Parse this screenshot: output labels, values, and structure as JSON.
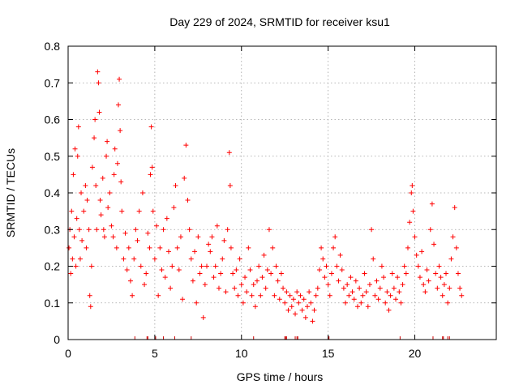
{
  "chart_data": {
    "type": "scatter",
    "title": "Day 229 of 2024, SRMTID for receiver ksu1",
    "xlabel": "GPS time / hours",
    "ylabel": "SRMTID / TECUs",
    "xlim": [
      0,
      24.7
    ],
    "ylim": [
      0,
      0.8
    ],
    "grid": true,
    "marker": "plus",
    "color": "#ff0000",
    "x_ticks": [
      0,
      5,
      10,
      15,
      20
    ],
    "x_tick_labels": [
      "0",
      "5",
      "10",
      "15",
      "20"
    ],
    "y_ticks": [
      0,
      0.1,
      0.2,
      0.3,
      0.4,
      0.5,
      0.6,
      0.7,
      0.8
    ],
    "y_tick_labels": [
      "0",
      "0.1",
      "0.2",
      "0.3",
      "0.4",
      "0.5",
      "0.6",
      "0.7",
      "0.8"
    ],
    "series": [
      {
        "name": "SRMTID",
        "points": [
          [
            0.05,
            0.25
          ],
          [
            0.1,
            0.3
          ],
          [
            0.15,
            0.18
          ],
          [
            0.2,
            0.35
          ],
          [
            0.25,
            0.22
          ],
          [
            0.3,
            0.45
          ],
          [
            0.35,
            0.28
          ],
          [
            0.4,
            0.52
          ],
          [
            0.45,
            0.2
          ],
          [
            0.5,
            0.33
          ],
          [
            0.55,
            0.5
          ],
          [
            0.6,
            0.58
          ],
          [
            0.65,
            0.3
          ],
          [
            0.7,
            0.22
          ],
          [
            0.75,
            0.4
          ],
          [
            0.8,
            0.27
          ],
          [
            0.9,
            0.35
          ],
          [
            1.0,
            0.42
          ],
          [
            1.05,
            0.25
          ],
          [
            1.1,
            0.38
          ],
          [
            1.2,
            0.3
          ],
          [
            1.25,
            0.12
          ],
          [
            1.3,
            0.09
          ],
          [
            1.35,
            0.2
          ],
          [
            1.4,
            0.47
          ],
          [
            1.5,
            0.55
          ],
          [
            1.55,
            0.6
          ],
          [
            1.6,
            0.42
          ],
          [
            1.65,
            0.3
          ],
          [
            1.7,
            0.73
          ],
          [
            1.75,
            0.7
          ],
          [
            1.8,
            0.62
          ],
          [
            1.85,
            0.38
          ],
          [
            1.9,
            0.34
          ],
          [
            2.0,
            0.44
          ],
          [
            2.05,
            0.3
          ],
          [
            2.1,
            0.28
          ],
          [
            2.2,
            0.5
          ],
          [
            2.25,
            0.54
          ],
          [
            2.3,
            0.36
          ],
          [
            2.4,
            0.4
          ],
          [
            2.5,
            0.31
          ],
          [
            2.6,
            0.28
          ],
          [
            2.65,
            0.45
          ],
          [
            2.7,
            0.52
          ],
          [
            2.8,
            0.25
          ],
          [
            2.85,
            0.48
          ],
          [
            2.9,
            0.64
          ],
          [
            2.95,
            0.71
          ],
          [
            3.0,
            0.57
          ],
          [
            3.05,
            0.43
          ],
          [
            3.1,
            0.35
          ],
          [
            3.2,
            0.22
          ],
          [
            3.3,
            0.29
          ],
          [
            3.4,
            0.19
          ],
          [
            3.5,
            0.25
          ],
          [
            3.6,
            0.16
          ],
          [
            3.7,
            0.12
          ],
          [
            3.8,
            0.22
          ],
          [
            3.9,
            0.3
          ],
          [
            4.0,
            0.27
          ],
          [
            4.1,
            0.35
          ],
          [
            4.2,
            0.2
          ],
          [
            4.3,
            0.4
          ],
          [
            4.4,
            0.15
          ],
          [
            4.5,
            0.18
          ],
          [
            4.6,
            0.29
          ],
          [
            4.7,
            0.25
          ],
          [
            4.75,
            0.45
          ],
          [
            4.8,
            0.58
          ],
          [
            4.85,
            0.47
          ],
          [
            4.9,
            0.35
          ],
          [
            5.0,
            0.22
          ],
          [
            5.1,
            0.31
          ],
          [
            5.2,
            0.12
          ],
          [
            5.3,
            0.25
          ],
          [
            5.4,
            0.19
          ],
          [
            5.5,
            0.3
          ],
          [
            5.6,
            0.17
          ],
          [
            5.7,
            0.33
          ],
          [
            5.8,
            0.24
          ],
          [
            5.9,
            0.14
          ],
          [
            6.0,
            0.2
          ],
          [
            6.1,
            0.36
          ],
          [
            6.2,
            0.42
          ],
          [
            6.3,
            0.25
          ],
          [
            6.4,
            0.19
          ],
          [
            6.5,
            0.28
          ],
          [
            6.6,
            0.11
          ],
          [
            6.7,
            0.44
          ],
          [
            6.8,
            0.53
          ],
          [
            6.9,
            0.38
          ],
          [
            7.0,
            0.3
          ],
          [
            7.1,
            0.22
          ],
          [
            7.2,
            0.16
          ],
          [
            7.3,
            0.24
          ],
          [
            7.4,
            0.1
          ],
          [
            7.5,
            0.28
          ],
          [
            7.6,
            0.18
          ],
          [
            7.7,
            0.2
          ],
          [
            7.8,
            0.06
          ],
          [
            7.9,
            0.15
          ],
          [
            8.0,
            0.2
          ],
          [
            8.1,
            0.26
          ],
          [
            8.2,
            0.24
          ],
          [
            8.3,
            0.28
          ],
          [
            8.4,
            0.17
          ],
          [
            8.5,
            0.2
          ],
          [
            8.6,
            0.31
          ],
          [
            8.7,
            0.14
          ],
          [
            8.8,
            0.18
          ],
          [
            8.9,
            0.22
          ],
          [
            9.0,
            0.27
          ],
          [
            9.1,
            0.13
          ],
          [
            9.2,
            0.3
          ],
          [
            9.3,
            0.51
          ],
          [
            9.35,
            0.42
          ],
          [
            9.4,
            0.25
          ],
          [
            9.5,
            0.18
          ],
          [
            9.6,
            0.14
          ],
          [
            9.7,
            0.19
          ],
          [
            9.8,
            0.12
          ],
          [
            9.9,
            0.22
          ],
          [
            10.0,
            0.15
          ],
          [
            10.1,
            0.1
          ],
          [
            10.2,
            0.17
          ],
          [
            10.3,
            0.13
          ],
          [
            10.4,
            0.25
          ],
          [
            10.5,
            0.19
          ],
          [
            10.6,
            0.12
          ],
          [
            10.7,
            0.15
          ],
          [
            10.8,
            0.09
          ],
          [
            10.9,
            0.16
          ],
          [
            11.0,
            0.2
          ],
          [
            11.1,
            0.12
          ],
          [
            11.2,
            0.17
          ],
          [
            11.3,
            0.23
          ],
          [
            11.4,
            0.14
          ],
          [
            11.5,
            0.19
          ],
          [
            11.6,
            0.3
          ],
          [
            11.7,
            0.18
          ],
          [
            11.8,
            0.25
          ],
          [
            11.9,
            0.12
          ],
          [
            12.0,
            0.2
          ],
          [
            12.1,
            0.16
          ],
          [
            12.2,
            0.11
          ],
          [
            12.3,
            0.18
          ],
          [
            12.4,
            0.14
          ],
          [
            12.5,
            0.1
          ],
          [
            12.6,
            0.13
          ],
          [
            12.7,
            0.08
          ],
          [
            12.8,
            0.12
          ],
          [
            12.9,
            0.09
          ],
          [
            13.0,
            0.11
          ],
          [
            13.1,
            0.07
          ],
          [
            13.2,
            0.13
          ],
          [
            13.3,
            0.1
          ],
          [
            13.4,
            0.12
          ],
          [
            13.5,
            0.08
          ],
          [
            13.6,
            0.11
          ],
          [
            13.7,
            0.06
          ],
          [
            13.8,
            0.09
          ],
          [
            13.9,
            0.13
          ],
          [
            14.0,
            0.1
          ],
          [
            14.1,
            0.05
          ],
          [
            14.2,
            0.08
          ],
          [
            14.3,
            0.12
          ],
          [
            14.4,
            0.14
          ],
          [
            14.5,
            0.19
          ],
          [
            14.6,
            0.25
          ],
          [
            14.7,
            0.22
          ],
          [
            14.8,
            0.17
          ],
          [
            14.9,
            0.2
          ],
          [
            15.0,
            0.15
          ],
          [
            15.1,
            0.12
          ],
          [
            15.2,
            0.18
          ],
          [
            15.3,
            0.25
          ],
          [
            15.4,
            0.28
          ],
          [
            15.5,
            0.2
          ],
          [
            15.6,
            0.16
          ],
          [
            15.7,
            0.23
          ],
          [
            15.8,
            0.19
          ],
          [
            15.9,
            0.14
          ],
          [
            16.0,
            0.1
          ],
          [
            16.1,
            0.15
          ],
          [
            16.2,
            0.12
          ],
          [
            16.3,
            0.17
          ],
          [
            16.4,
            0.13
          ],
          [
            16.5,
            0.11
          ],
          [
            16.6,
            0.16
          ],
          [
            16.7,
            0.09
          ],
          [
            16.8,
            0.14
          ],
          [
            16.9,
            0.1
          ],
          [
            17.0,
            0.12
          ],
          [
            17.1,
            0.18
          ],
          [
            17.2,
            0.13
          ],
          [
            17.3,
            0.09
          ],
          [
            17.4,
            0.15
          ],
          [
            17.5,
            0.3
          ],
          [
            17.6,
            0.22
          ],
          [
            17.7,
            0.12
          ],
          [
            17.8,
            0.16
          ],
          [
            17.9,
            0.11
          ],
          [
            18.0,
            0.14
          ],
          [
            18.1,
            0.2
          ],
          [
            18.2,
            0.17
          ],
          [
            18.3,
            0.1
          ],
          [
            18.4,
            0.13
          ],
          [
            18.5,
            0.08
          ],
          [
            18.6,
            0.12
          ],
          [
            18.7,
            0.18
          ],
          [
            18.8,
            0.14
          ],
          [
            18.9,
            0.11
          ],
          [
            19.0,
            0.17
          ],
          [
            19.1,
            0.13
          ],
          [
            19.2,
            0.1
          ],
          [
            19.3,
            0.15
          ],
          [
            19.4,
            0.2
          ],
          [
            19.5,
            0.18
          ],
          [
            19.6,
            0.25
          ],
          [
            19.7,
            0.32
          ],
          [
            19.8,
            0.4
          ],
          [
            19.85,
            0.42
          ],
          [
            19.9,
            0.35
          ],
          [
            20.0,
            0.28
          ],
          [
            20.1,
            0.23
          ],
          [
            20.2,
            0.2
          ],
          [
            20.3,
            0.17
          ],
          [
            20.4,
            0.24
          ],
          [
            20.5,
            0.15
          ],
          [
            20.6,
            0.13
          ],
          [
            20.7,
            0.19
          ],
          [
            20.8,
            0.16
          ],
          [
            20.9,
            0.3
          ],
          [
            21.0,
            0.37
          ],
          [
            21.1,
            0.26
          ],
          [
            21.2,
            0.18
          ],
          [
            21.3,
            0.14
          ],
          [
            21.4,
            0.2
          ],
          [
            21.5,
            0.17
          ],
          [
            21.6,
            0.12
          ],
          [
            21.7,
            0.15
          ],
          [
            21.8,
            0.18
          ],
          [
            21.9,
            0.1
          ],
          [
            22.0,
            0.14
          ],
          [
            22.1,
            0.22
          ],
          [
            22.2,
            0.28
          ],
          [
            22.3,
            0.36
          ],
          [
            22.4,
            0.25
          ],
          [
            22.5,
            0.18
          ],
          [
            22.6,
            0.14
          ],
          [
            22.7,
            0.12
          ]
        ]
      }
    ],
    "rug_x": [
      3.85,
      4.55,
      4.6,
      5.05,
      5.5,
      6.15,
      7.1,
      10.7,
      12.5,
      12.55,
      12.6,
      13.1,
      13.2,
      13.25,
      15.0,
      15.05,
      19.15,
      21.05,
      21.6,
      21.65,
      21.9,
      22.0
    ]
  }
}
